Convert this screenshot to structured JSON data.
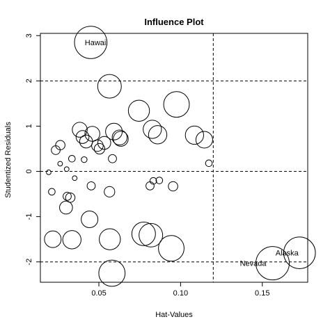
{
  "chart_data": {
    "type": "scatter",
    "title": "Influence Plot",
    "xlabel": "Hat-Values",
    "ylabel": "Studentized Residuals",
    "xlim": [
      0.0142,
      0.1778
    ],
    "ylim": [
      -2.45,
      3.05
    ],
    "x_ticks": [
      0.05,
      0.1,
      0.15
    ],
    "x_tick_labels": [
      "0.05",
      "0.10",
      "0.15"
    ],
    "y_ticks": [
      -2,
      -1,
      0,
      1,
      2,
      3
    ],
    "y_tick_labels": [
      "-2",
      "-1",
      "0",
      "1",
      "2",
      "3"
    ],
    "reference_lines": {
      "vertical": [
        0.12
      ],
      "horizontal": [
        -2,
        0,
        2
      ]
    },
    "grid": false,
    "point_size_note": "circle area proportional to Cook's distance",
    "points": [
      {
        "x": 0.045,
        "y": 2.85,
        "label": "Hawaii",
        "size": 0.94
      },
      {
        "x": 0.0565,
        "y": 1.88,
        "size": 0.5
      },
      {
        "x": 0.0975,
        "y": 1.48,
        "size": 0.59
      },
      {
        "x": 0.0745,
        "y": 1.34,
        "size": 0.4
      },
      {
        "x": 0.0827,
        "y": 0.93,
        "size": 0.3
      },
      {
        "x": 0.086,
        "y": 0.81,
        "size": 0.3
      },
      {
        "x": 0.1085,
        "y": 0.8,
        "size": 0.3
      },
      {
        "x": 0.1145,
        "y": 0.7,
        "size": 0.25
      },
      {
        "x": 0.0592,
        "y": 0.88,
        "size": 0.25
      },
      {
        "x": 0.0627,
        "y": 0.75,
        "size": 0.2
      },
      {
        "x": 0.0634,
        "y": 0.72,
        "size": 0.2
      },
      {
        "x": 0.0383,
        "y": 0.92,
        "size": 0.2
      },
      {
        "x": 0.046,
        "y": 0.83,
        "size": 0.2
      },
      {
        "x": 0.04,
        "y": 0.76,
        "size": 0.15
      },
      {
        "x": 0.0422,
        "y": 0.66,
        "size": 0.15
      },
      {
        "x": 0.0533,
        "y": 0.63,
        "size": 0.15
      },
      {
        "x": 0.0491,
        "y": 0.57,
        "size": 0.12
      },
      {
        "x": 0.0504,
        "y": 0.5,
        "size": 0.1
      },
      {
        "x": 0.0264,
        "y": 0.58,
        "size": 0.08
      },
      {
        "x": 0.0236,
        "y": 0.47,
        "size": 0.07
      },
      {
        "x": 0.0583,
        "y": 0.28,
        "size": 0.06
      },
      {
        "x": 0.0335,
        "y": 0.28,
        "size": 0.04
      },
      {
        "x": 0.041,
        "y": 0.26,
        "size": 0.03
      },
      {
        "x": 0.0263,
        "y": 0.17,
        "size": 0.02
      },
      {
        "x": 0.1173,
        "y": 0.18,
        "size": 0.04
      },
      {
        "x": 0.0303,
        "y": 0.05,
        "size": 0.02
      },
      {
        "x": 0.0193,
        "y": -0.02,
        "size": 0.02
      },
      {
        "x": 0.0352,
        "y": -0.15,
        "size": 0.02
      },
      {
        "x": 0.087,
        "y": -0.2,
        "size": 0.04
      },
      {
        "x": 0.0833,
        "y": -0.21,
        "size": 0.04
      },
      {
        "x": 0.0813,
        "y": -0.32,
        "size": 0.06
      },
      {
        "x": 0.0453,
        "y": -0.32,
        "size": 0.06
      },
      {
        "x": 0.0954,
        "y": -0.33,
        "size": 0.08
      },
      {
        "x": 0.0565,
        "y": -0.45,
        "size": 0.1
      },
      {
        "x": 0.0212,
        "y": -0.45,
        "size": 0.04
      },
      {
        "x": 0.0306,
        "y": -0.55,
        "size": 0.06
      },
      {
        "x": 0.0325,
        "y": -0.58,
        "size": 0.08
      },
      {
        "x": 0.0299,
        "y": -0.8,
        "size": 0.15
      },
      {
        "x": 0.0443,
        "y": -1.06,
        "size": 0.25
      },
      {
        "x": 0.0218,
        "y": -1.5,
        "size": 0.25
      },
      {
        "x": 0.0335,
        "y": -1.51,
        "size": 0.3
      },
      {
        "x": 0.0567,
        "y": -1.5,
        "size": 0.4
      },
      {
        "x": 0.0774,
        "y": -1.38,
        "size": 0.5
      },
      {
        "x": 0.0818,
        "y": -1.41,
        "size": 0.5
      },
      {
        "x": 0.0943,
        "y": -1.7,
        "size": 0.59
      },
      {
        "x": 0.058,
        "y": -2.25,
        "size": 0.62
      },
      {
        "x": 0.1563,
        "y": -2.03,
        "size": 1.0,
        "label": "Nevada"
      },
      {
        "x": 0.1728,
        "y": -1.8,
        "size": 0.9,
        "label": "Alaska"
      }
    ]
  }
}
